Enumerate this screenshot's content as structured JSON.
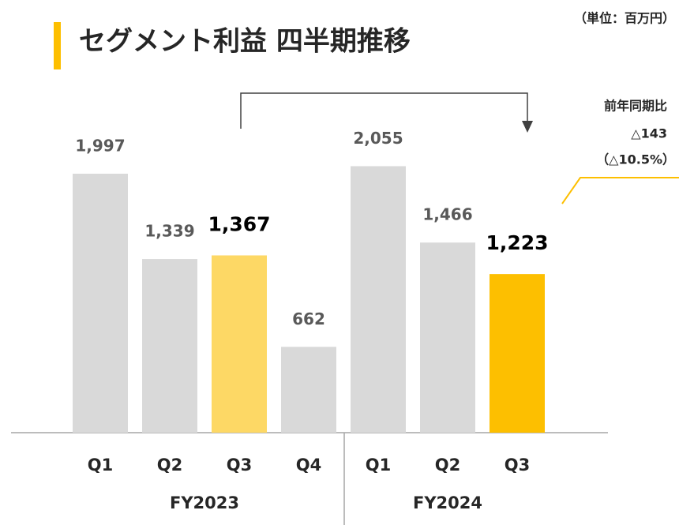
{
  "chart_data": {
    "type": "bar",
    "title": "セグメント利益 四半期推移",
    "unit": "（単位：百万円）",
    "annotation": {
      "heading": "前年同期比",
      "change": "△143",
      "change_pct": "（△10.5%）"
    },
    "groups": [
      {
        "name": "FY2023",
        "categories": [
          "Q1",
          "Q2",
          "Q3",
          "Q4"
        ],
        "values": [
          1997,
          1339,
          1367,
          662
        ],
        "value_labels": [
          "1,997",
          "1,339",
          "1,367",
          "662"
        ],
        "colors": [
          "#d9d9d9",
          "#d9d9d9",
          "#fdd865",
          "#d9d9d9"
        ],
        "highlight": [
          false,
          false,
          true,
          false
        ]
      },
      {
        "name": "FY2024",
        "categories": [
          "Q1",
          "Q2",
          "Q3"
        ],
        "values": [
          2055,
          1466,
          1223
        ],
        "value_labels": [
          "2,055",
          "1,466",
          "1,223"
        ],
        "colors": [
          "#d9d9d9",
          "#d9d9d9",
          "#fdbf00"
        ],
        "highlight": [
          false,
          false,
          true
        ]
      }
    ]
  }
}
